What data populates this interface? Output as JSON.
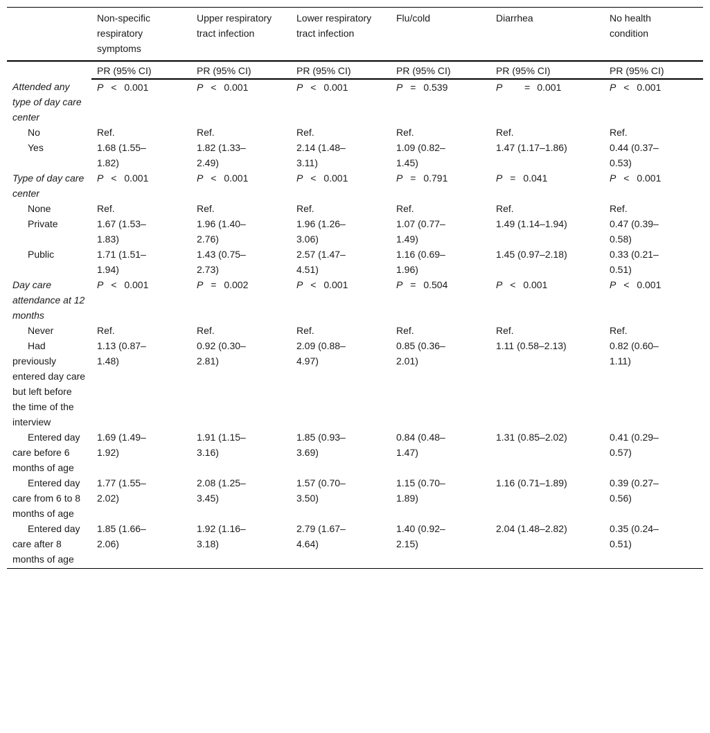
{
  "table": {
    "columns": [
      "Non-specific respiratory symptoms",
      "Upper respiratory tract infection",
      "Lower respiratory tract infection",
      "Flu/cold",
      "Diarrhea",
      "No health condition"
    ],
    "subheader": [
      "PR (95% CI)",
      "PR (95% CI)",
      "PR (95% CI)",
      "PR (95% CI)",
      "PR (95% CI)",
      "PR (95% CI)"
    ],
    "groups": [
      {
        "label": "Attended any type of day care center",
        "p": [
          {
            "sym": "P",
            "op": "<",
            "val": "0.001"
          },
          {
            "sym": "P",
            "op": "<",
            "val": "0.001"
          },
          {
            "sym": "P",
            "op": "<",
            "val": "0.001"
          },
          {
            "sym": "P",
            "op": "=",
            "val": "0.539"
          },
          {
            "sym": "P",
            "op": "=",
            "val": "0.001"
          },
          {
            "sym": "P",
            "op": "<",
            "val": "0.001"
          }
        ],
        "rows": [
          {
            "label": "No",
            "values": [
              "Ref.",
              "Ref.",
              "Ref.",
              "Ref.",
              "Ref.",
              "Ref."
            ]
          },
          {
            "label": "Yes",
            "values": [
              "1.68 (1.55–1.82)",
              "1.82 (1.33–2.49)",
              "2.14 (1.48–3.11)",
              "1.09 (0.82–1.45)",
              "1.47 (1.17–1.86)",
              "0.44 (0.37–0.53)"
            ]
          }
        ]
      },
      {
        "label": "Type of day care center",
        "p": [
          {
            "sym": "P",
            "op": "<",
            "val": "0.001"
          },
          {
            "sym": "P",
            "op": "<",
            "val": "0.001"
          },
          {
            "sym": "P",
            "op": "<",
            "val": "0.001"
          },
          {
            "sym": "P",
            "op": "=",
            "val": "0.791"
          },
          {
            "sym": "P",
            "op": "=",
            "val": "0.041"
          },
          {
            "sym": "P",
            "op": "<",
            "val": "0.001"
          }
        ],
        "rows": [
          {
            "label": "None",
            "values": [
              "Ref.",
              "Ref.",
              "Ref.",
              "Ref.",
              "Ref.",
              "Ref."
            ]
          },
          {
            "label": "Private",
            "values": [
              "1.67 (1.53–1.83)",
              "1.96 (1.40–2.76)",
              "1.96 (1.26–3.06)",
              "1.07 (0.77–1.49)",
              "1.49 (1.14–1.94)",
              "0.47 (0.39–0.58)"
            ]
          },
          {
            "label": "Public",
            "values": [
              "1.71 (1.51–1.94)",
              "1.43 (0.75–2.73)",
              "2.57 (1.47–4.51)",
              "1.16 (0.69–1.96)",
              "1.45 (0.97–2.18)",
              "0.33 (0.21–0.51)"
            ]
          }
        ]
      },
      {
        "label": "Day care attendance at 12 months",
        "p": [
          {
            "sym": "P",
            "op": "<",
            "val": "0.001"
          },
          {
            "sym": "P",
            "op": "=",
            "val": "0.002"
          },
          {
            "sym": "P",
            "op": "<",
            "val": "0.001"
          },
          {
            "sym": "P",
            "op": "=",
            "val": "0.504"
          },
          {
            "sym": "P",
            "op": "<",
            "val": "0.001"
          },
          {
            "sym": "P",
            "op": "<",
            "val": "0.001"
          }
        ],
        "rows": [
          {
            "label": "Never",
            "values": [
              "Ref.",
              "Ref.",
              "Ref.",
              "Ref.",
              "Ref.",
              "Ref."
            ]
          },
          {
            "label": "Had previously entered day care but left before the time of the interview",
            "values": [
              "1.13 (0.87–1.48)",
              "0.92 (0.30–2.81)",
              "2.09 (0.88–4.97)",
              "0.85 (0.36–2.01)",
              "1.11 (0.58–2.13)",
              "0.82 (0.60–1.11)"
            ]
          },
          {
            "label": "Entered day care before 6 months of age",
            "values": [
              "1.69 (1.49–1.92)",
              "1.91 (1.15–3.16)",
              "1.85 (0.93–3.69)",
              "0.84 (0.48–1.47)",
              "1.31 (0.85–2.02)",
              "0.41 (0.29–0.57)"
            ]
          },
          {
            "label": "Entered day care from 6 to 8 months of age",
            "values": [
              "1.77 (1.55–2.02)",
              "2.08 (1.25–3.45)",
              "1.57 (0.70–3.50)",
              "1.15 (0.70–1.89)",
              "1.16 (0.71–1.89)",
              "0.39 (0.27–0.56)"
            ]
          },
          {
            "label": "Entered day care after 8 months of age",
            "values": [
              "1.85 (1.66–2.06)",
              "1.92 (1.16–3.18)",
              "2.79 (1.67–4.64)",
              "1.40 (0.92–2.15)",
              "2.04 (1.48–2.82)",
              "0.35 (0.24–0.51)"
            ]
          }
        ]
      }
    ]
  }
}
